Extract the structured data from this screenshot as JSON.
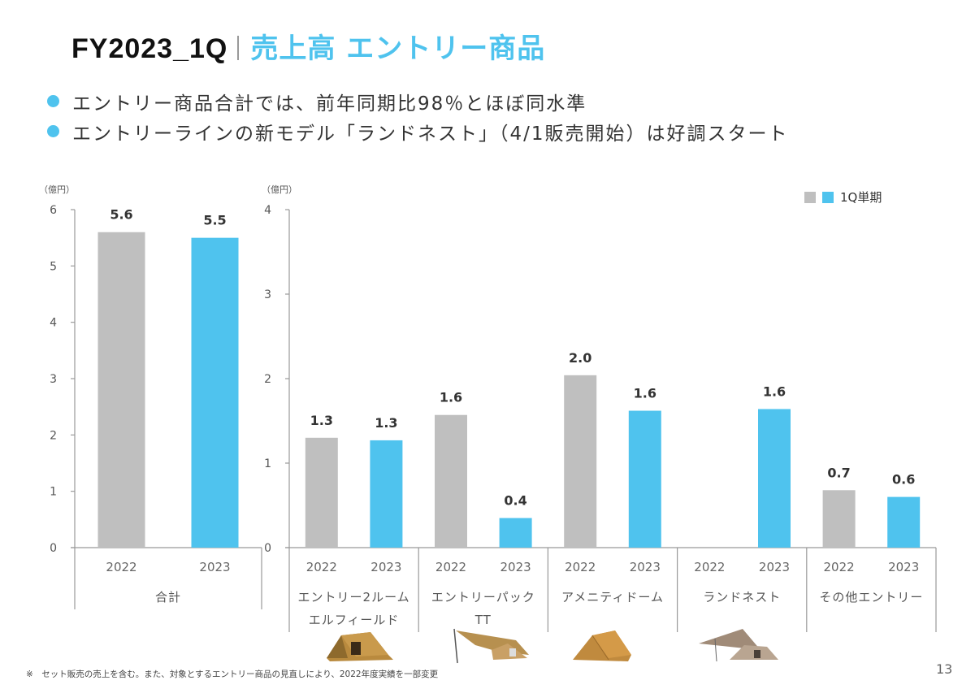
{
  "header": {
    "code": "FY2023_1Q",
    "title": "売上高 エントリー商品"
  },
  "bullets": [
    "エントリー商品合計では、前年同期比98％とほぼ同水準",
    "エントリーラインの新モデル「ランドネスト」（4/1販売開始）は好調スタート"
  ],
  "colors": {
    "accent": "#4fc3ee",
    "prior_year": "#bfbfbf",
    "current_year": "#4fc3ee"
  },
  "legend": {
    "label": "1Q単期"
  },
  "footnote": "※　セット販売の売上を含む。また、対象とするエントリー商品の見直しにより、2022年度実績を一部変更",
  "page_number": "13",
  "chart_data": [
    {
      "type": "bar",
      "title": "合計",
      "unit_label": "（億円）",
      "ylim": [
        0,
        6
      ],
      "yticks": [
        0,
        1,
        2,
        3,
        4,
        5,
        6
      ],
      "groups": [
        {
          "label": [
            "合計"
          ],
          "bars": [
            {
              "year": "2022",
              "value": 5.6,
              "label": "5.6",
              "series": "prior"
            },
            {
              "year": "2023",
              "value": 5.5,
              "label": "5.5",
              "series": "current"
            }
          ]
        }
      ]
    },
    {
      "type": "bar",
      "title": "エントリー商品別",
      "unit_label": "（億円）",
      "ylim": [
        0,
        4
      ],
      "yticks": [
        0,
        1,
        2,
        3,
        4
      ],
      "groups": [
        {
          "label": [
            "エントリー2ルーム",
            "エルフィールド"
          ],
          "image": "tent-2room",
          "bars": [
            {
              "year": "2022",
              "value": 1.3,
              "label": "1.3",
              "series": "prior"
            },
            {
              "year": "2023",
              "value": 1.27,
              "label": "1.3",
              "series": "current"
            }
          ]
        },
        {
          "label": [
            "エントリーパック",
            "TT"
          ],
          "image": "tent-pack-tt",
          "bars": [
            {
              "year": "2022",
              "value": 1.57,
              "label": "1.6",
              "series": "prior"
            },
            {
              "year": "2023",
              "value": 0.35,
              "label": "0.4",
              "series": "current"
            }
          ]
        },
        {
          "label": [
            "アメニティドーム"
          ],
          "image": "tent-amenity-dome",
          "bars": [
            {
              "year": "2022",
              "value": 2.04,
              "label": "2.0",
              "series": "prior"
            },
            {
              "year": "2023",
              "value": 1.62,
              "label": "1.6",
              "series": "current"
            }
          ]
        },
        {
          "label": [
            "ランドネスト"
          ],
          "image": "tent-landnest",
          "bars": [
            {
              "year": "2022",
              "value": null,
              "label": "",
              "series": "prior"
            },
            {
              "year": "2023",
              "value": 1.64,
              "label": "1.6",
              "series": "current"
            }
          ]
        },
        {
          "label": [
            "その他エントリー"
          ],
          "bars": [
            {
              "year": "2022",
              "value": 0.68,
              "label": "0.7",
              "series": "prior"
            },
            {
              "year": "2023",
              "value": 0.6,
              "label": "0.6",
              "series": "current"
            }
          ]
        }
      ]
    }
  ]
}
